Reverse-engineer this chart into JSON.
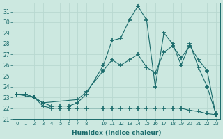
{
  "xlabel": "Humidex (Indice chaleur)",
  "background_color": "#cce8e0",
  "grid_color": "#b0d8d0",
  "line_color": "#1a6b6b",
  "xlim": [
    -0.5,
    23.5
  ],
  "ylim": [
    21,
    31.8
  ],
  "yticks": [
    21,
    22,
    23,
    24,
    25,
    26,
    27,
    28,
    29,
    30,
    31
  ],
  "xtick_labels": [
    "0",
    "1",
    "2",
    "3",
    "4",
    "5",
    "6",
    "7",
    "8",
    "10",
    "11",
    "12",
    "13",
    "14",
    "15",
    "16",
    "17",
    "18",
    "19",
    "20",
    "21",
    "22",
    "23"
  ],
  "xtick_pos": [
    0,
    1,
    2,
    3,
    4,
    5,
    6,
    7,
    8,
    10,
    11,
    12,
    13,
    14,
    15,
    16,
    17,
    18,
    19,
    20,
    21,
    22,
    23
  ],
  "line1_x": [
    0,
    1,
    2,
    3,
    4,
    5,
    6,
    7,
    8,
    10,
    11,
    12,
    13,
    14,
    15,
    16,
    17,
    18,
    19,
    20,
    21,
    22,
    23
  ],
  "line1_y": [
    23.3,
    23.3,
    23.0,
    22.5,
    22.2,
    22.2,
    22.2,
    22.5,
    23.3,
    26.0,
    28.3,
    28.5,
    30.2,
    31.5,
    30.2,
    24.0,
    29.0,
    28.0,
    26.0,
    28.0,
    25.8,
    24.0,
    21.5
  ],
  "line2_x": [
    0,
    2,
    3,
    7,
    8,
    10,
    11,
    12,
    13,
    14,
    15,
    16,
    17,
    18,
    19,
    20,
    21,
    22,
    23
  ],
  "line2_y": [
    23.3,
    23.0,
    22.5,
    22.8,
    23.5,
    25.5,
    26.5,
    26.0,
    26.5,
    27.0,
    25.8,
    25.3,
    27.2,
    27.8,
    26.7,
    27.8,
    26.5,
    25.5,
    21.4
  ],
  "line3_x": [
    0,
    1,
    2,
    3,
    4,
    5,
    6,
    7,
    8,
    10,
    11,
    12,
    13,
    14,
    15,
    16,
    17,
    18,
    19,
    20,
    21,
    22,
    23
  ],
  "line3_y": [
    23.3,
    23.3,
    23.0,
    22.2,
    22.0,
    22.0,
    22.0,
    22.0,
    22.0,
    22.0,
    22.0,
    22.0,
    22.0,
    22.0,
    22.0,
    22.0,
    22.0,
    22.0,
    22.0,
    21.8,
    21.7,
    21.5,
    21.4
  ]
}
